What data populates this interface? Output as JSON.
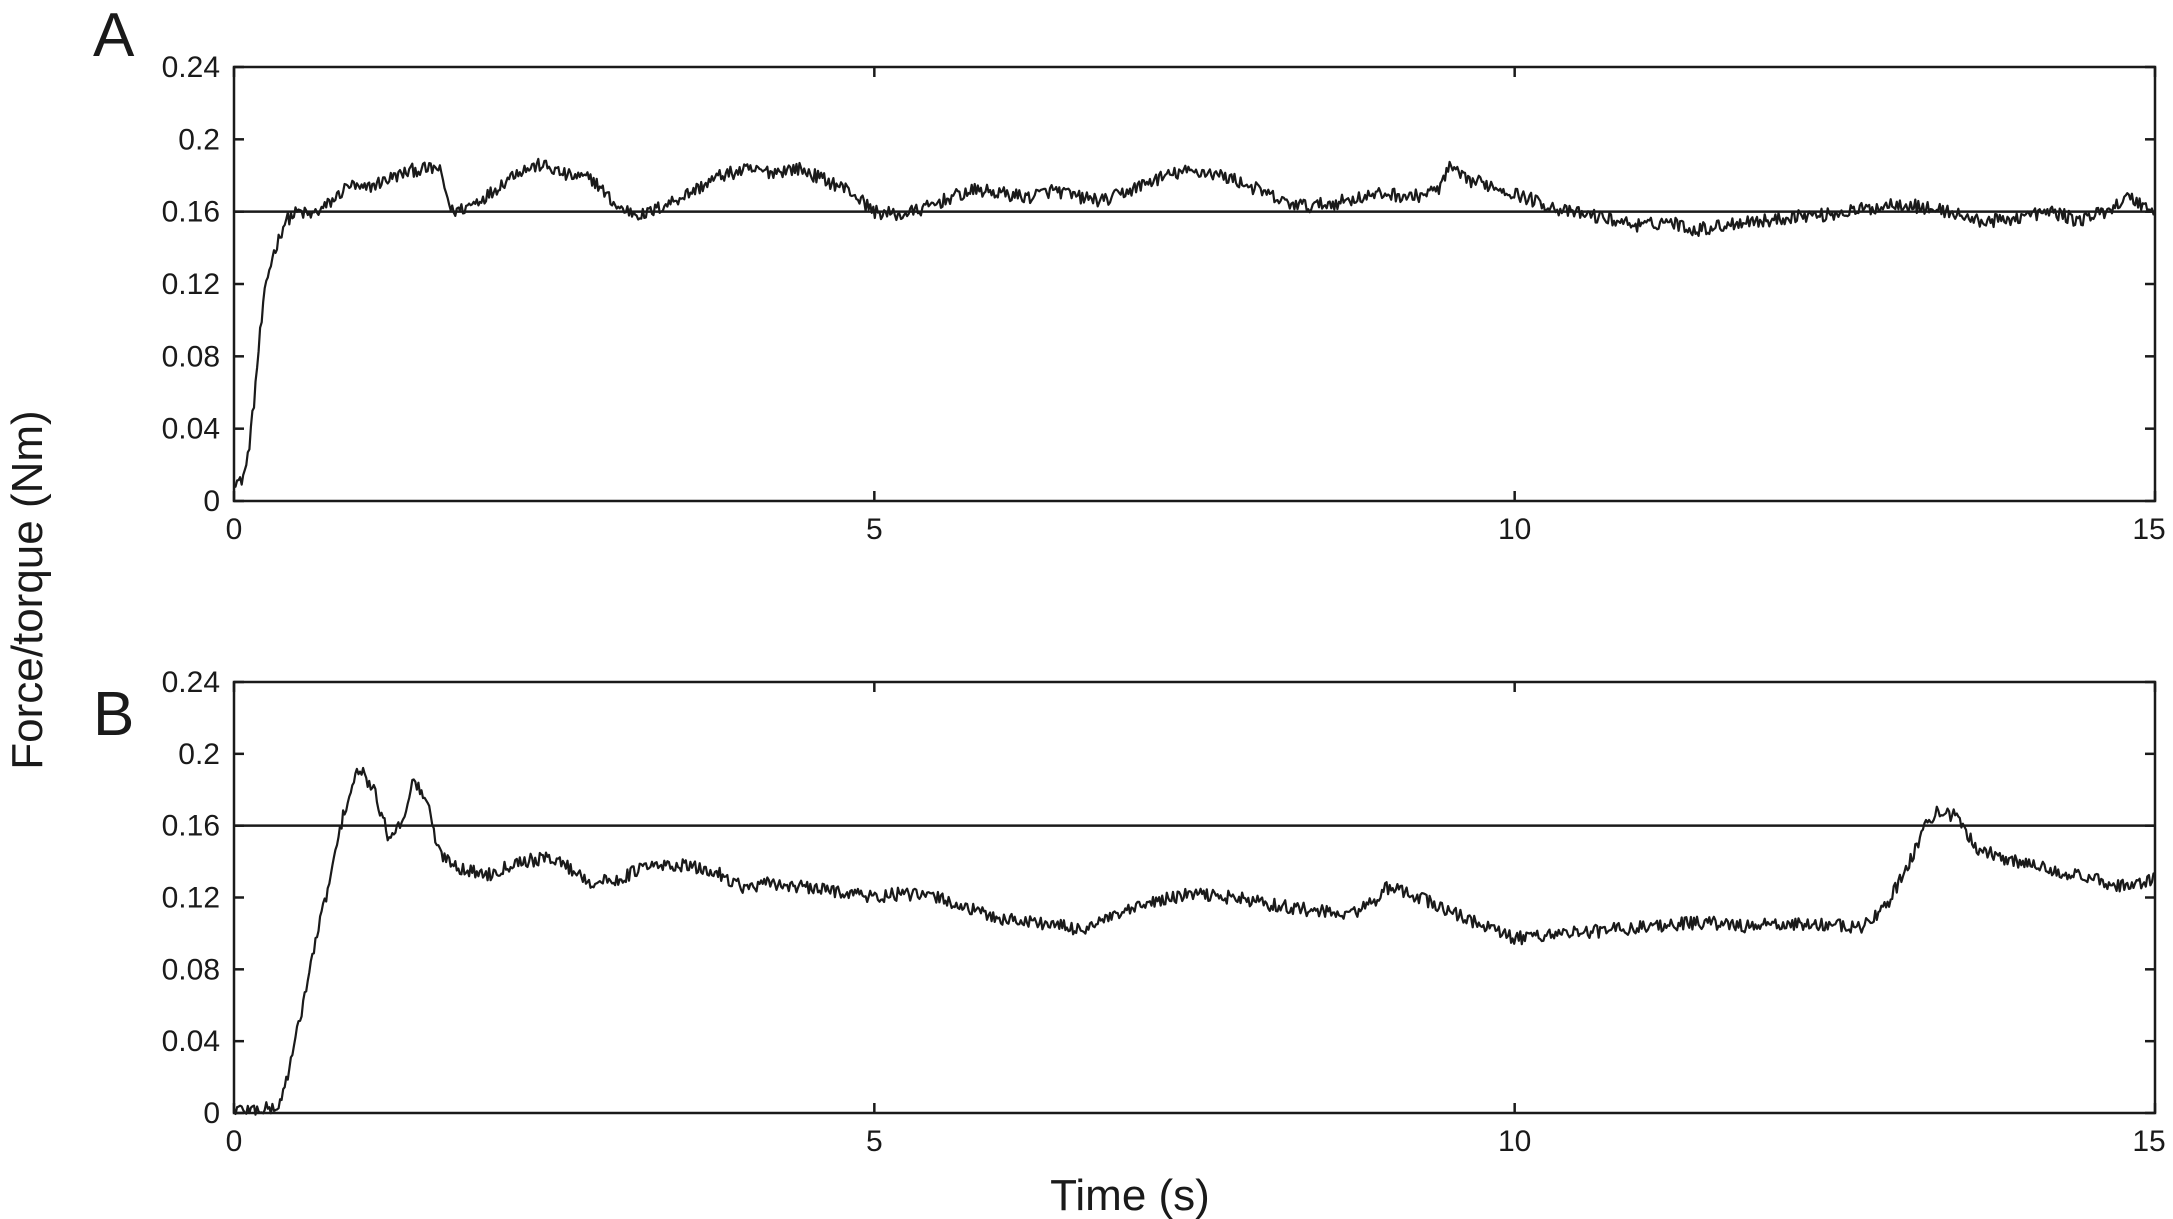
{
  "figure": {
    "ylabel": "Force/torque (Nm)",
    "xlabel": "Time (s)"
  },
  "chart_data": [
    {
      "type": "line",
      "panel": "A",
      "xlim": [
        0,
        15
      ],
      "ylim": [
        0,
        0.24
      ],
      "xticks": [
        "0",
        "5",
        "10",
        "15"
      ],
      "yticks": [
        "0",
        "0.04",
        "0.08",
        "0.12",
        "0.16",
        "0.2",
        "0.24"
      ],
      "reference": {
        "y": 0.16
      },
      "series": [
        {
          "x": [
            0,
            0.05,
            0.1,
            0.15,
            0.2,
            0.25,
            0.3,
            0.35,
            0.4,
            0.5,
            0.6,
            0.7,
            0.8,
            0.9,
            1.0,
            1.2,
            1.4,
            1.6,
            1.7,
            1.8,
            2.0,
            2.2,
            2.4,
            2.6,
            2.8,
            3.0,
            3.2,
            3.4,
            3.6,
            3.8,
            4.0,
            4.2,
            4.4,
            4.6,
            4.8,
            5.0,
            5.2,
            5.4,
            5.6,
            5.8,
            6.0,
            6.2,
            6.4,
            6.6,
            6.8,
            7.0,
            7.2,
            7.4,
            7.6,
            7.8,
            8.0,
            8.2,
            8.4,
            8.6,
            8.8,
            9.0,
            9.2,
            9.4,
            9.5,
            9.6,
            9.8,
            10.0,
            10.2,
            10.4,
            10.6,
            10.8,
            11.0,
            11.2,
            11.4,
            11.6,
            11.8,
            12.0,
            12.2,
            12.4,
            12.6,
            12.8,
            13.0,
            13.2,
            13.4,
            13.6,
            13.8,
            14.0,
            14.2,
            14.4,
            14.6,
            14.8,
            15.0
          ],
          "y": [
            0.012,
            0.01,
            0.02,
            0.05,
            0.09,
            0.12,
            0.135,
            0.145,
            0.155,
            0.16,
            0.158,
            0.162,
            0.168,
            0.175,
            0.172,
            0.178,
            0.183,
            0.184,
            0.16,
            0.162,
            0.17,
            0.182,
            0.186,
            0.18,
            0.178,
            0.162,
            0.158,
            0.165,
            0.172,
            0.18,
            0.183,
            0.182,
            0.184,
            0.178,
            0.172,
            0.16,
            0.158,
            0.162,
            0.168,
            0.172,
            0.17,
            0.168,
            0.172,
            0.168,
            0.166,
            0.172,
            0.178,
            0.182,
            0.182,
            0.178,
            0.172,
            0.165,
            0.163,
            0.165,
            0.168,
            0.17,
            0.168,
            0.172,
            0.185,
            0.178,
            0.175,
            0.17,
            0.165,
            0.16,
            0.158,
            0.155,
            0.152,
            0.155,
            0.15,
            0.152,
            0.155,
            0.155,
            0.158,
            0.158,
            0.16,
            0.162,
            0.165,
            0.162,
            0.16,
            0.155,
            0.155,
            0.158,
            0.16,
            0.155,
            0.16,
            0.168,
            0.16
          ]
        }
      ]
    },
    {
      "type": "line",
      "panel": "B",
      "xlim": [
        0,
        15
      ],
      "ylim": [
        0,
        0.24
      ],
      "xticks": [
        "0",
        "5",
        "10",
        "15"
      ],
      "yticks": [
        "0",
        "0.04",
        "0.08",
        "0.12",
        "0.16",
        "0.2",
        "0.24"
      ],
      "reference": {
        "y": 0.16
      },
      "series": [
        {
          "x": [
            0,
            0.2,
            0.35,
            0.45,
            0.55,
            0.65,
            0.75,
            0.85,
            0.95,
            1.0,
            1.1,
            1.2,
            1.3,
            1.4,
            1.5,
            1.6,
            1.8,
            2.0,
            2.2,
            2.5,
            2.8,
            3.0,
            3.2,
            3.5,
            3.8,
            4.0,
            4.2,
            4.5,
            4.8,
            5.0,
            5.2,
            5.5,
            5.8,
            6.0,
            6.3,
            6.6,
            6.9,
            7.2,
            7.5,
            7.8,
            8.1,
            8.4,
            8.7,
            8.9,
            9.0,
            9.2,
            9.5,
            9.8,
            10.0,
            10.3,
            10.6,
            10.9,
            11.2,
            11.5,
            11.8,
            12.1,
            12.4,
            12.7,
            12.9,
            13.1,
            13.2,
            13.3,
            13.45,
            13.6,
            13.9,
            14.2,
            14.5,
            14.8,
            15.0
          ],
          "y": [
            0.002,
            0.002,
            0.003,
            0.03,
            0.065,
            0.1,
            0.13,
            0.165,
            0.188,
            0.19,
            0.178,
            0.155,
            0.16,
            0.185,
            0.175,
            0.145,
            0.135,
            0.133,
            0.14,
            0.142,
            0.128,
            0.13,
            0.137,
            0.138,
            0.133,
            0.125,
            0.128,
            0.125,
            0.123,
            0.12,
            0.122,
            0.12,
            0.112,
            0.108,
            0.106,
            0.102,
            0.11,
            0.118,
            0.122,
            0.12,
            0.116,
            0.113,
            0.11,
            0.118,
            0.125,
            0.122,
            0.112,
            0.103,
            0.097,
            0.1,
            0.101,
            0.103,
            0.105,
            0.106,
            0.104,
            0.105,
            0.105,
            0.103,
            0.115,
            0.142,
            0.16,
            0.168,
            0.165,
            0.148,
            0.14,
            0.136,
            0.13,
            0.126,
            0.13
          ]
        }
      ]
    }
  ]
}
